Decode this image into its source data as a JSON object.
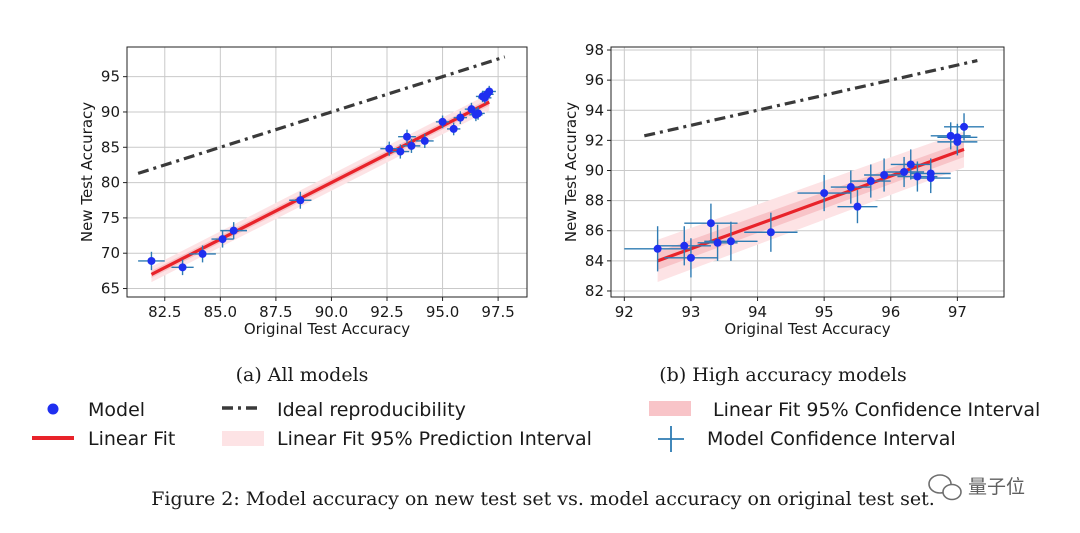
{
  "chart_data": [
    {
      "type": "scatter",
      "subcaption": "(a) All models",
      "xlabel": "Original Test Accuracy",
      "ylabel": "New Test Accuracy",
      "xlim": [
        80.8,
        98.8
      ],
      "ylim": [
        63.8,
        99.2
      ],
      "xticks": [
        82.5,
        85.0,
        87.5,
        90.0,
        92.5,
        95.0,
        97.5
      ],
      "xtick_labels": [
        "82.5",
        "85.0",
        "87.5",
        "90.0",
        "92.5",
        "95.0",
        "97.5"
      ],
      "yticks": [
        65,
        70,
        75,
        80,
        85,
        90,
        95
      ],
      "ytick_labels": [
        "65",
        "70",
        "75",
        "80",
        "85",
        "90",
        "95"
      ],
      "grid": true,
      "ideal_line": [
        [
          81.3,
          81.3
        ],
        [
          97.8,
          97.8
        ]
      ],
      "fit_line": [
        [
          81.9,
          67.0
        ],
        [
          97.1,
          91.4
        ]
      ],
      "prediction_band": [
        [
          81.9,
          65.9,
          68.1
        ],
        [
          97.1,
          90.2,
          92.6
        ]
      ],
      "confidence_band": [
        [
          81.9,
          66.5,
          67.5
        ],
        [
          97.1,
          90.9,
          91.9
        ]
      ],
      "points": [
        {
          "x": 81.9,
          "y": 68.9,
          "xerr": 0.6,
          "yerr": 1.3
        },
        {
          "x": 83.3,
          "y": 68.0,
          "xerr": 0.5,
          "yerr": 1.1
        },
        {
          "x": 84.2,
          "y": 69.9,
          "xerr": 0.6,
          "yerr": 1.2
        },
        {
          "x": 85.1,
          "y": 72.0,
          "xerr": 0.5,
          "yerr": 1.2
        },
        {
          "x": 85.6,
          "y": 73.2,
          "xerr": 0.6,
          "yerr": 1.2
        },
        {
          "x": 88.6,
          "y": 77.5,
          "xerr": 0.5,
          "yerr": 1.2
        },
        {
          "x": 92.6,
          "y": 84.8,
          "xerr": 0.4,
          "yerr": 1.0
        },
        {
          "x": 93.1,
          "y": 84.4,
          "xerr": 0.4,
          "yerr": 1.0
        },
        {
          "x": 93.4,
          "y": 86.5,
          "xerr": 0.4,
          "yerr": 1.0
        },
        {
          "x": 93.6,
          "y": 85.2,
          "xerr": 0.4,
          "yerr": 1.0
        },
        {
          "x": 94.2,
          "y": 85.9,
          "xerr": 0.4,
          "yerr": 1.0
        },
        {
          "x": 95.0,
          "y": 88.6,
          "xerr": 0.3,
          "yerr": 0.9
        },
        {
          "x": 95.5,
          "y": 87.6,
          "xerr": 0.3,
          "yerr": 0.9
        },
        {
          "x": 95.8,
          "y": 89.2,
          "xerr": 0.3,
          "yerr": 0.9
        },
        {
          "x": 96.3,
          "y": 90.4,
          "xerr": 0.3,
          "yerr": 0.9
        },
        {
          "x": 96.5,
          "y": 89.6,
          "xerr": 0.3,
          "yerr": 0.9
        },
        {
          "x": 96.6,
          "y": 89.8,
          "xerr": 0.3,
          "yerr": 0.9
        },
        {
          "x": 96.8,
          "y": 92.2,
          "xerr": 0.3,
          "yerr": 0.8
        },
        {
          "x": 96.9,
          "y": 92.0,
          "xerr": 0.3,
          "yerr": 0.8
        },
        {
          "x": 97.0,
          "y": 92.5,
          "xerr": 0.3,
          "yerr": 0.8
        },
        {
          "x": 97.1,
          "y": 92.9,
          "xerr": 0.3,
          "yerr": 0.8
        }
      ]
    },
    {
      "type": "scatter",
      "subcaption": "(b) High accuracy models",
      "xlabel": "Original Test Accuracy",
      "ylabel": "New Test Accuracy",
      "xlim": [
        91.8,
        97.7
      ],
      "ylim": [
        81.6,
        98.2
      ],
      "xticks": [
        92,
        93,
        94,
        95,
        96,
        97
      ],
      "xtick_labels": [
        "92",
        "93",
        "94",
        "95",
        "96",
        "97"
      ],
      "yticks": [
        82,
        84,
        86,
        88,
        90,
        92,
        94,
        96,
        98
      ],
      "ytick_labels": [
        "82",
        "84",
        "86",
        "88",
        "90",
        "92",
        "94",
        "96",
        "98"
      ],
      "grid": true,
      "ideal_line": [
        [
          92.3,
          92.3
        ],
        [
          97.3,
          97.3
        ]
      ],
      "fit_line": [
        [
          92.5,
          84.0
        ],
        [
          97.1,
          91.4
        ]
      ],
      "prediction_band": [
        [
          92.5,
          82.6,
          85.4
        ],
        [
          97.1,
          90.2,
          92.6
        ]
      ],
      "confidence_band": [
        [
          92.5,
          83.4,
          84.6
        ],
        [
          97.1,
          90.9,
          91.9
        ]
      ],
      "points": [
        {
          "x": 92.5,
          "y": 84.8,
          "xerr": 0.5,
          "yerr": 1.5
        },
        {
          "x": 92.9,
          "y": 85.0,
          "xerr": 0.4,
          "yerr": 1.3
        },
        {
          "x": 93.0,
          "y": 84.2,
          "xerr": 0.4,
          "yerr": 1.3
        },
        {
          "x": 93.3,
          "y": 86.5,
          "xerr": 0.4,
          "yerr": 1.3
        },
        {
          "x": 93.4,
          "y": 85.2,
          "xerr": 0.3,
          "yerr": 1.2
        },
        {
          "x": 93.6,
          "y": 85.3,
          "xerr": 0.4,
          "yerr": 1.3
        },
        {
          "x": 94.2,
          "y": 85.9,
          "xerr": 0.4,
          "yerr": 1.3
        },
        {
          "x": 95.0,
          "y": 88.5,
          "xerr": 0.4,
          "yerr": 1.2
        },
        {
          "x": 95.4,
          "y": 88.9,
          "xerr": 0.3,
          "yerr": 1.1
        },
        {
          "x": 95.5,
          "y": 87.6,
          "xerr": 0.3,
          "yerr": 1.1
        },
        {
          "x": 95.7,
          "y": 89.3,
          "xerr": 0.3,
          "yerr": 1.1
        },
        {
          "x": 95.9,
          "y": 89.7,
          "xerr": 0.3,
          "yerr": 1.1
        },
        {
          "x": 96.2,
          "y": 89.9,
          "xerr": 0.3,
          "yerr": 1.0
        },
        {
          "x": 96.3,
          "y": 90.4,
          "xerr": 0.3,
          "yerr": 1.0
        },
        {
          "x": 96.4,
          "y": 89.6,
          "xerr": 0.3,
          "yerr": 1.0
        },
        {
          "x": 96.6,
          "y": 89.8,
          "xerr": 0.3,
          "yerr": 1.0
        },
        {
          "x": 96.6,
          "y": 89.5,
          "xerr": 0.3,
          "yerr": 1.0
        },
        {
          "x": 96.9,
          "y": 92.3,
          "xerr": 0.3,
          "yerr": 0.9
        },
        {
          "x": 97.0,
          "y": 91.9,
          "xerr": 0.3,
          "yerr": 0.9
        },
        {
          "x": 97.0,
          "y": 92.2,
          "xerr": 0.3,
          "yerr": 0.9
        },
        {
          "x": 97.1,
          "y": 92.9,
          "xerr": 0.3,
          "yerr": 0.9
        }
      ]
    }
  ],
  "legend": {
    "model": "Model",
    "ideal": "Ideal reproducibility",
    "conf_interval": "Linear Fit 95% Confidence Interval",
    "linear_fit": "Linear Fit",
    "pred_interval": "Linear Fit 95% Prediction Interval",
    "model_conf": "Model Confidence Interval"
  },
  "caption": "Figure 2: Model accuracy on new test set vs. model accuracy on original test set.",
  "watermark": "量子位",
  "colors": {
    "point": "#1f2ff0",
    "errorbar": "#2e7bb3",
    "fit": "#e8232a",
    "ideal": "#3a3a3a",
    "prediction_band": "#fde3e5",
    "confidence_band": "#f8c4c8",
    "grid": "#c9c9c9"
  }
}
